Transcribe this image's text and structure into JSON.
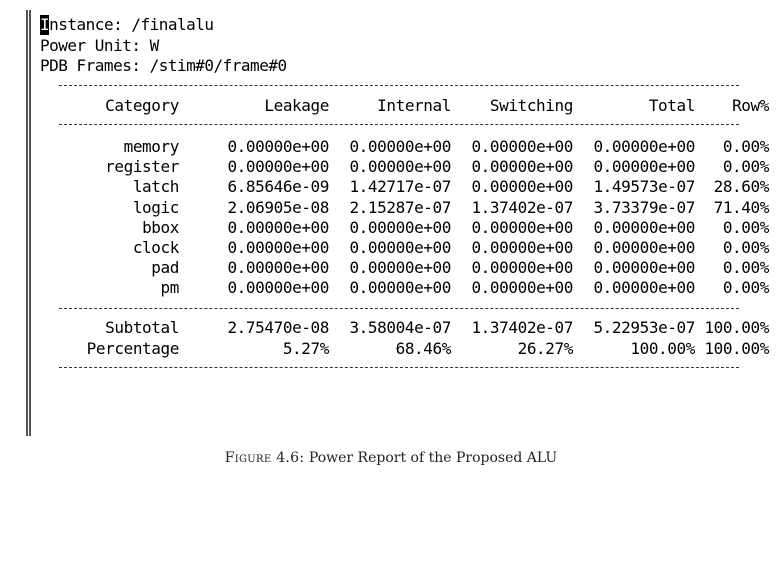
{
  "header": {
    "instance_label": "Instance: /finalalu",
    "power_unit_label": "Power Unit: W",
    "pdb_frames_label": "PDB Frames: /stim#0/frame#0"
  },
  "table": {
    "columns": [
      "Category",
      "Leakage",
      "Internal",
      "Switching",
      "Total",
      "Row%"
    ],
    "rows": [
      {
        "category": "memory",
        "leakage": "0.00000e+00",
        "internal": "0.00000e+00",
        "switching": "0.00000e+00",
        "total": "0.00000e+00",
        "row_pct": "0.00%"
      },
      {
        "category": "register",
        "leakage": "0.00000e+00",
        "internal": "0.00000e+00",
        "switching": "0.00000e+00",
        "total": "0.00000e+00",
        "row_pct": "0.00%"
      },
      {
        "category": "latch",
        "leakage": "6.85646e-09",
        "internal": "1.42717e-07",
        "switching": "0.00000e+00",
        "total": "1.49573e-07",
        "row_pct": "28.60%"
      },
      {
        "category": "logic",
        "leakage": "2.06905e-08",
        "internal": "2.15287e-07",
        "switching": "1.37402e-07",
        "total": "3.73379e-07",
        "row_pct": "71.40%"
      },
      {
        "category": "bbox",
        "leakage": "0.00000e+00",
        "internal": "0.00000e+00",
        "switching": "0.00000e+00",
        "total": "0.00000e+00",
        "row_pct": "0.00%"
      },
      {
        "category": "clock",
        "leakage": "0.00000e+00",
        "internal": "0.00000e+00",
        "switching": "0.00000e+00",
        "total": "0.00000e+00",
        "row_pct": "0.00%"
      },
      {
        "category": "pad",
        "leakage": "0.00000e+00",
        "internal": "0.00000e+00",
        "switching": "0.00000e+00",
        "total": "0.00000e+00",
        "row_pct": "0.00%"
      },
      {
        "category": "pm",
        "leakage": "0.00000e+00",
        "internal": "0.00000e+00",
        "switching": "0.00000e+00",
        "total": "0.00000e+00",
        "row_pct": "0.00%"
      }
    ],
    "subtotal": {
      "category": "Subtotal",
      "leakage": "2.75470e-08",
      "internal": "3.58004e-07",
      "switching": "1.37402e-07",
      "total": "5.22953e-07",
      "row_pct": "100.00%"
    },
    "percentage": {
      "category": "Percentage",
      "leakage": "5.27%",
      "internal": "68.46%",
      "switching": "26.27%",
      "total": "100.00%",
      "row_pct": "100.00%"
    }
  },
  "caption": {
    "figure_label": "Figure 4.6:",
    "text": "Power Report of the Proposed ALU"
  }
}
